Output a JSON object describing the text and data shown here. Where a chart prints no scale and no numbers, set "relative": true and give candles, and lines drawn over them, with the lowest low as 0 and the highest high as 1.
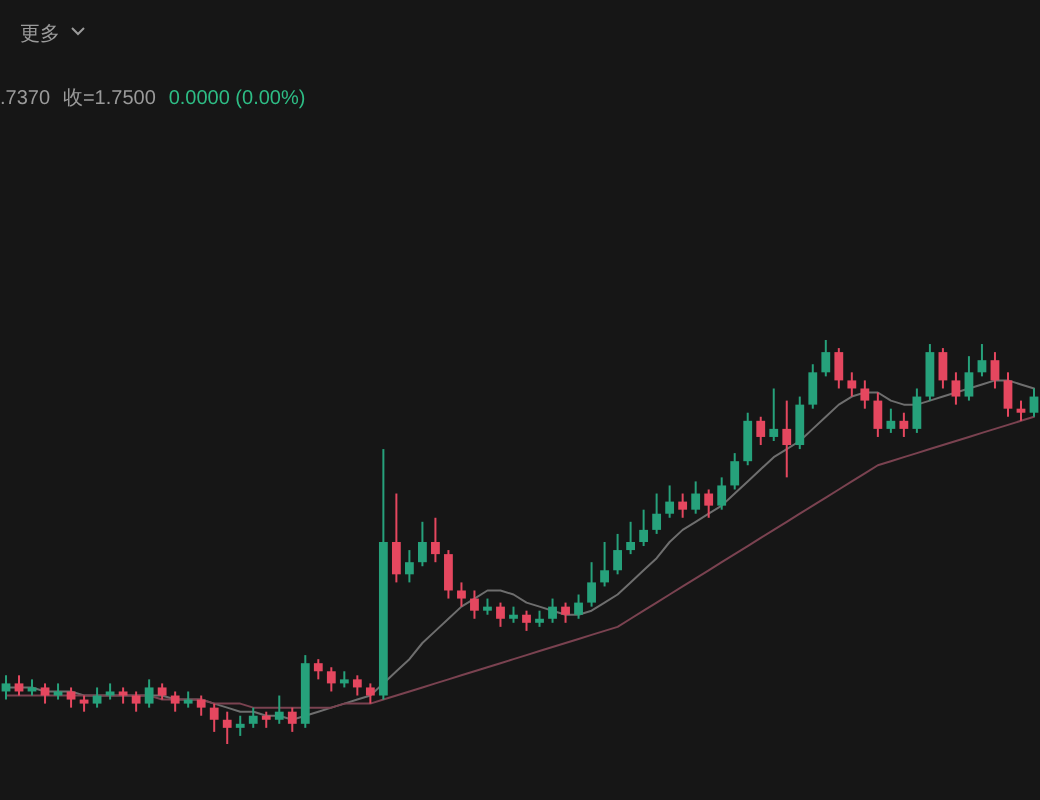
{
  "chart_data": {
    "type": "candlestick",
    "relative": true,
    "annotations": [
      "更多",
      ".7370",
      "收=1.7500",
      "0.0000 (0.00%)"
    ],
    "categories": [
      null,
      null,
      null,
      null,
      null,
      null,
      null,
      null,
      null,
      null,
      null,
      null,
      null,
      null,
      null,
      null,
      null,
      null,
      null,
      null,
      null,
      null,
      null,
      null,
      null,
      null,
      null,
      null,
      null,
      null,
      null,
      null,
      null,
      null,
      null,
      null,
      null,
      null,
      null,
      null,
      null,
      null,
      null,
      null,
      null,
      null,
      null,
      null,
      null,
      null,
      null,
      null,
      null,
      null,
      null,
      null,
      null,
      null,
      null,
      null,
      null,
      null,
      null,
      null,
      null,
      null,
      null,
      null,
      null,
      null,
      null,
      null,
      null,
      null,
      null,
      null,
      null,
      null,
      null,
      null
    ],
    "ohlc": [
      [
        0.13,
        0.17,
        0.11,
        0.15
      ],
      [
        0.15,
        0.17,
        0.12,
        0.13
      ],
      [
        0.13,
        0.16,
        0.12,
        0.14
      ],
      [
        0.14,
        0.15,
        0.1,
        0.12
      ],
      [
        0.12,
        0.15,
        0.11,
        0.13
      ],
      [
        0.13,
        0.14,
        0.09,
        0.11
      ],
      [
        0.11,
        0.12,
        0.08,
        0.1
      ],
      [
        0.1,
        0.14,
        0.09,
        0.12
      ],
      [
        0.12,
        0.15,
        0.11,
        0.13
      ],
      [
        0.13,
        0.14,
        0.1,
        0.12
      ],
      [
        0.12,
        0.13,
        0.08,
        0.1
      ],
      [
        0.1,
        0.16,
        0.09,
        0.14
      ],
      [
        0.14,
        0.15,
        0.11,
        0.12
      ],
      [
        0.12,
        0.13,
        0.08,
        0.1
      ],
      [
        0.1,
        0.13,
        0.09,
        0.11
      ],
      [
        0.11,
        0.12,
        0.07,
        0.09
      ],
      [
        0.09,
        0.1,
        0.03,
        0.06
      ],
      [
        0.06,
        0.08,
        0.0,
        0.04
      ],
      [
        0.04,
        0.07,
        0.02,
        0.05
      ],
      [
        0.05,
        0.09,
        0.04,
        0.07
      ],
      [
        0.07,
        0.08,
        0.04,
        0.06
      ],
      [
        0.06,
        0.12,
        0.05,
        0.08
      ],
      [
        0.08,
        0.09,
        0.03,
        0.05
      ],
      [
        0.05,
        0.22,
        0.04,
        0.2
      ],
      [
        0.2,
        0.21,
        0.16,
        0.18
      ],
      [
        0.18,
        0.19,
        0.13,
        0.15
      ],
      [
        0.15,
        0.18,
        0.14,
        0.16
      ],
      [
        0.16,
        0.17,
        0.12,
        0.14
      ],
      [
        0.14,
        0.15,
        0.1,
        0.12
      ],
      [
        0.12,
        0.73,
        0.11,
        0.5
      ],
      [
        0.5,
        0.62,
        0.4,
        0.42
      ],
      [
        0.42,
        0.48,
        0.4,
        0.45
      ],
      [
        0.45,
        0.55,
        0.44,
        0.5
      ],
      [
        0.5,
        0.56,
        0.45,
        0.47
      ],
      [
        0.47,
        0.48,
        0.36,
        0.38
      ],
      [
        0.38,
        0.4,
        0.34,
        0.36
      ],
      [
        0.36,
        0.38,
        0.31,
        0.33
      ],
      [
        0.33,
        0.36,
        0.32,
        0.34
      ],
      [
        0.34,
        0.35,
        0.29,
        0.31
      ],
      [
        0.31,
        0.34,
        0.3,
        0.32
      ],
      [
        0.32,
        0.33,
        0.28,
        0.3
      ],
      [
        0.3,
        0.33,
        0.29,
        0.31
      ],
      [
        0.31,
        0.36,
        0.3,
        0.34
      ],
      [
        0.34,
        0.35,
        0.3,
        0.32
      ],
      [
        0.32,
        0.37,
        0.31,
        0.35
      ],
      [
        0.35,
        0.45,
        0.34,
        0.4
      ],
      [
        0.4,
        0.5,
        0.39,
        0.43
      ],
      [
        0.43,
        0.52,
        0.42,
        0.48
      ],
      [
        0.48,
        0.55,
        0.47,
        0.5
      ],
      [
        0.5,
        0.58,
        0.49,
        0.53
      ],
      [
        0.53,
        0.62,
        0.52,
        0.57
      ],
      [
        0.57,
        0.64,
        0.56,
        0.6
      ],
      [
        0.6,
        0.62,
        0.56,
        0.58
      ],
      [
        0.58,
        0.65,
        0.57,
        0.62
      ],
      [
        0.62,
        0.63,
        0.56,
        0.59
      ],
      [
        0.59,
        0.66,
        0.58,
        0.64
      ],
      [
        0.64,
        0.72,
        0.63,
        0.7
      ],
      [
        0.7,
        0.82,
        0.69,
        0.8
      ],
      [
        0.8,
        0.81,
        0.74,
        0.76
      ],
      [
        0.76,
        0.88,
        0.75,
        0.78
      ],
      [
        0.78,
        0.85,
        0.66,
        0.74
      ],
      [
        0.74,
        0.86,
        0.73,
        0.84
      ],
      [
        0.84,
        0.94,
        0.83,
        0.92
      ],
      [
        0.92,
        1.0,
        0.91,
        0.97
      ],
      [
        0.97,
        0.98,
        0.88,
        0.9
      ],
      [
        0.9,
        0.92,
        0.86,
        0.88
      ],
      [
        0.88,
        0.9,
        0.83,
        0.85
      ],
      [
        0.85,
        0.87,
        0.76,
        0.78
      ],
      [
        0.78,
        0.83,
        0.77,
        0.8
      ],
      [
        0.8,
        0.82,
        0.76,
        0.78
      ],
      [
        0.78,
        0.88,
        0.77,
        0.86
      ],
      [
        0.86,
        0.99,
        0.85,
        0.97
      ],
      [
        0.97,
        0.98,
        0.88,
        0.9
      ],
      [
        0.9,
        0.92,
        0.84,
        0.86
      ],
      [
        0.86,
        0.96,
        0.85,
        0.92
      ],
      [
        0.92,
        0.99,
        0.91,
        0.95
      ],
      [
        0.95,
        0.97,
        0.88,
        0.9
      ],
      [
        0.9,
        0.92,
        0.81,
        0.83
      ],
      [
        0.83,
        0.85,
        0.8,
        0.82
      ],
      [
        0.82,
        0.88,
        0.81,
        0.86
      ]
    ],
    "colors": [
      "#26a17b",
      "#e5475f",
      "#26a17b",
      "#e5475f",
      "#26a17b",
      "#e5475f",
      "#e5475f",
      "#26a17b",
      "#26a17b",
      "#e5475f",
      "#e5475f",
      "#26a17b",
      "#e5475f",
      "#e5475f",
      "#26a17b",
      "#e5475f",
      "#e5475f",
      "#e5475f",
      "#26a17b",
      "#26a17b",
      "#e5475f",
      "#26a17b",
      "#e5475f",
      "#26a17b",
      "#e5475f",
      "#e5475f",
      "#26a17b",
      "#e5475f",
      "#e5475f",
      "#26a17b",
      "#e5475f",
      "#26a17b",
      "#26a17b",
      "#e5475f",
      "#e5475f",
      "#e5475f",
      "#e5475f",
      "#26a17b",
      "#e5475f",
      "#26a17b",
      "#e5475f",
      "#26a17b",
      "#26a17b",
      "#e5475f",
      "#26a17b",
      "#26a17b",
      "#26a17b",
      "#26a17b",
      "#26a17b",
      "#26a17b",
      "#26a17b",
      "#26a17b",
      "#e5475f",
      "#26a17b",
      "#e5475f",
      "#26a17b",
      "#26a17b",
      "#26a17b",
      "#e5475f",
      "#26a17b",
      "#e5475f",
      "#26a17b",
      "#26a17b",
      "#26a17b",
      "#e5475f",
      "#e5475f",
      "#e5475f",
      "#e5475f",
      "#26a17b",
      "#e5475f",
      "#26a17b",
      "#26a17b",
      "#e5475f",
      "#e5475f",
      "#26a17b",
      "#26a17b",
      "#e5475f",
      "#e5475f",
      "#e5475f",
      "#26a17b"
    ],
    "series": [
      {
        "type": "line",
        "color": "#6e6e6e",
        "values": [
          0.14,
          0.14,
          0.14,
          0.13,
          0.13,
          0.13,
          0.12,
          0.12,
          0.12,
          0.12,
          0.12,
          0.12,
          0.12,
          0.11,
          0.11,
          0.11,
          0.1,
          0.09,
          0.08,
          0.08,
          0.07,
          0.07,
          0.06,
          0.07,
          0.08,
          0.09,
          0.1,
          0.11,
          0.12,
          0.15,
          0.18,
          0.21,
          0.25,
          0.28,
          0.31,
          0.34,
          0.36,
          0.38,
          0.38,
          0.37,
          0.35,
          0.34,
          0.33,
          0.32,
          0.32,
          0.33,
          0.35,
          0.37,
          0.4,
          0.43,
          0.46,
          0.5,
          0.53,
          0.55,
          0.57,
          0.59,
          0.62,
          0.65,
          0.68,
          0.71,
          0.73,
          0.75,
          0.78,
          0.81,
          0.84,
          0.86,
          0.87,
          0.87,
          0.85,
          0.84,
          0.84,
          0.85,
          0.86,
          0.87,
          0.88,
          0.89,
          0.9,
          0.9,
          0.89,
          0.88
        ]
      },
      {
        "type": "line",
        "color": "#7a4250",
        "values": [
          0.12,
          0.12,
          0.12,
          0.12,
          0.12,
          0.12,
          0.12,
          0.12,
          0.12,
          0.12,
          0.12,
          0.12,
          0.11,
          0.11,
          0.11,
          0.11,
          0.1,
          0.1,
          0.1,
          0.09,
          0.09,
          0.09,
          0.09,
          0.09,
          0.09,
          0.09,
          0.1,
          0.1,
          0.1,
          0.11,
          0.12,
          0.13,
          0.14,
          0.15,
          0.16,
          0.17,
          0.18,
          0.19,
          0.2,
          0.21,
          0.22,
          0.23,
          0.24,
          0.25,
          0.26,
          0.27,
          0.28,
          0.29,
          0.31,
          0.33,
          0.35,
          0.37,
          0.39,
          0.41,
          0.43,
          0.45,
          0.47,
          0.49,
          0.51,
          0.53,
          0.55,
          0.57,
          0.59,
          0.61,
          0.63,
          0.65,
          0.67,
          0.69,
          0.7,
          0.71,
          0.72,
          0.73,
          0.74,
          0.75,
          0.76,
          0.77,
          0.78,
          0.79,
          0.8,
          0.81
        ]
      }
    ]
  }
}
